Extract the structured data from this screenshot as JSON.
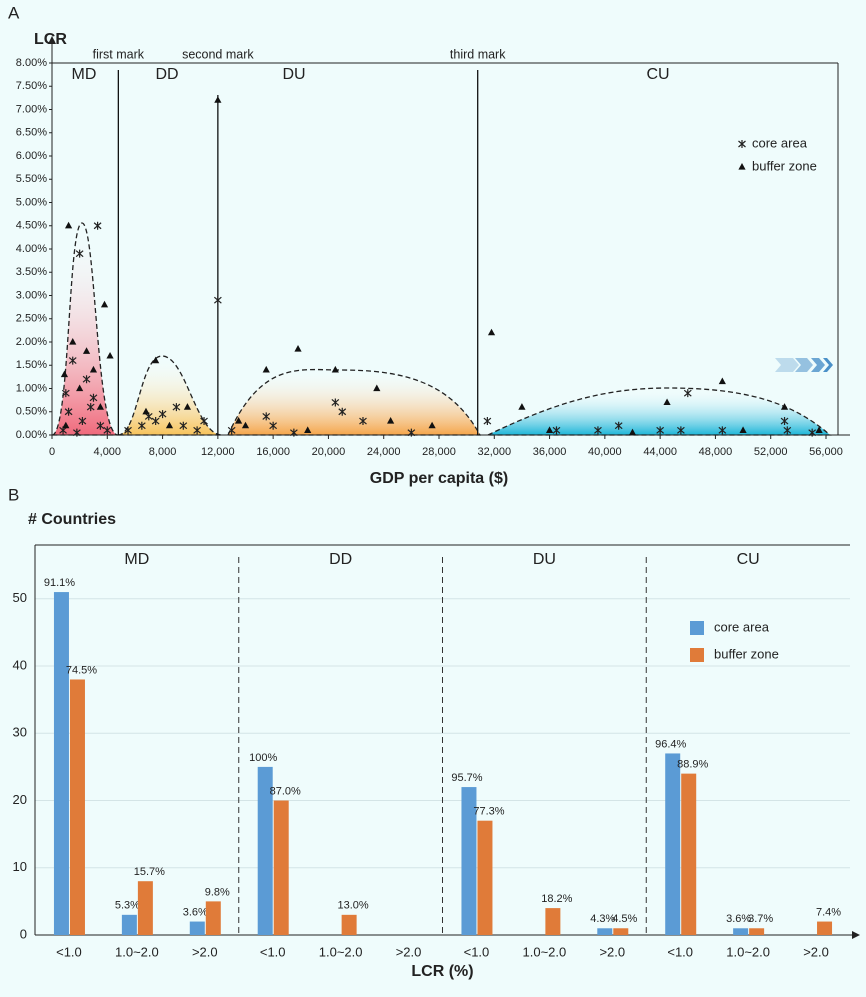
{
  "chart_data": [
    {
      "type": "scatter",
      "title": "A",
      "y_label": "LCR",
      "x_label": "GDP per capita ($)",
      "xlim": [
        0,
        56000
      ],
      "ylim": [
        0,
        8
      ],
      "xticks": [
        0,
        {
          "value": 4000,
          "label": "4,000"
        },
        {
          "value": 8000,
          "label": "8,000"
        },
        {
          "value": 12000,
          "label": "12,000"
        },
        {
          "value": 16000,
          "label": "16,000"
        },
        {
          "value": 20000,
          "label": "20,000"
        },
        {
          "value": 24000,
          "label": "24,000"
        },
        {
          "value": 28000,
          "label": "28,000"
        },
        {
          "value": 32000,
          "label": "32,000"
        },
        {
          "value": 36000,
          "label": "36,000"
        },
        {
          "value": 40000,
          "label": "40,000"
        },
        {
          "value": 44000,
          "label": "44,000"
        },
        {
          "value": 48000,
          "label": "48,000"
        },
        {
          "value": 52000,
          "label": "52,000"
        },
        {
          "value": 56000,
          "label": "56,000"
        }
      ],
      "yticks": [
        {
          "value": 0,
          "label": "0.00%"
        },
        {
          "value": 0.5,
          "label": "0.50%"
        },
        {
          "value": 1,
          "label": "1.00%"
        },
        {
          "value": 1.5,
          "label": "1.50%"
        },
        {
          "value": 2,
          "label": "2.00%"
        },
        {
          "value": 2.5,
          "label": "2.50%"
        },
        {
          "value": 3,
          "label": "3.00%"
        },
        {
          "value": 3.5,
          "label": "3.50%"
        },
        {
          "value": 4,
          "label": "4.00%"
        },
        {
          "value": 4.5,
          "label": "4.50%"
        },
        {
          "value": 5,
          "label": "5.00%"
        },
        {
          "value": 5.5,
          "label": "5.50%"
        },
        {
          "value": 6,
          "label": "6.00%"
        },
        {
          "value": 6.5,
          "label": "6.50%"
        },
        {
          "value": 7,
          "label": "7.00%"
        },
        {
          "value": 7.5,
          "label": "7.50%"
        },
        {
          "value": 8,
          "label": "8.00%"
        }
      ],
      "stage_marks": [
        {
          "label": "first mark",
          "value": 4800
        },
        {
          "label": "second mark",
          "value": 12000
        },
        {
          "label": "third mark",
          "value": 30800
        }
      ],
      "stages": [
        "MD",
        "DD",
        "DU",
        "CU"
      ],
      "legend": "upper right",
      "series": [
        {
          "name": "core area",
          "marker": "asterisk",
          "color": "#222222",
          "x": [
            1000,
            2000,
            3300,
            1500,
            2500,
            3000,
            1200,
            2200,
            3500,
            800,
            4000,
            1800,
            2800,
            5500,
            6500,
            7000,
            7500,
            8000,
            9000,
            9500,
            10500,
            11000,
            12000,
            13000,
            15500,
            16000,
            17500,
            20500,
            21000,
            22500,
            26000,
            31500,
            36500,
            39500,
            41000,
            44000,
            45500,
            46000,
            48500,
            53000,
            53200,
            55000
          ],
          "values": [
            0.9,
            3.9,
            4.5,
            1.6,
            1.2,
            0.8,
            0.5,
            0.3,
            0.2,
            0.1,
            0.1,
            0.05,
            0.6,
            0.1,
            0.2,
            0.4,
            0.3,
            0.45,
            0.6,
            0.2,
            0.1,
            0.3,
            2.9,
            0.1,
            0.4,
            0.2,
            0.05,
            0.7,
            0.5,
            0.3,
            0.05,
            0.3,
            0.1,
            0.1,
            0.2,
            0.1,
            0.1,
            0.9,
            0.1,
            0.3,
            0.1,
            0.05
          ]
        },
        {
          "name": "buffer zone",
          "marker": "triangle",
          "color": "#111111",
          "x": [
            1200,
            3800,
            2500,
            1500,
            4200,
            900,
            3000,
            2000,
            3500,
            1000,
            7500,
            6800,
            9800,
            8500,
            12000,
            13500,
            15500,
            17800,
            20500,
            23500,
            14000,
            18500,
            24500,
            27500,
            31800,
            34000,
            44500,
            48500,
            53000,
            36000,
            42000,
            50000,
            55500
          ],
          "values": [
            4.5,
            2.8,
            1.8,
            2.0,
            1.7,
            1.3,
            1.4,
            1.0,
            0.6,
            0.2,
            1.6,
            0.5,
            0.6,
            0.2,
            7.2,
            0.3,
            1.4,
            1.85,
            1.4,
            1.0,
            0.2,
            0.1,
            0.3,
            0.2,
            2.2,
            0.6,
            0.7,
            1.15,
            0.6,
            0.1,
            0.05,
            0.1,
            0.1
          ]
        }
      ]
    },
    {
      "type": "bar",
      "title": "B",
      "y_label": "# Countries",
      "x_label": "LCR (%)",
      "groups": [
        "MD",
        "DD",
        "DU",
        "CU"
      ],
      "categories": [
        "<1.0",
        "1.0~2.0",
        ">2.0",
        "<1.0",
        "1.0~2.0",
        ">2.0",
        "<1.0",
        "1.0~2.0",
        ">2.0",
        "<1.0",
        "1.0~2.0",
        ">2.0"
      ],
      "ylim": [
        0,
        58
      ],
      "yticks": [
        0,
        10,
        20,
        30,
        40,
        50
      ],
      "grid": true,
      "legend": "upper right",
      "series": [
        {
          "name": "core area",
          "color": "#5b9bd5",
          "values": [
            51,
            3,
            2,
            25,
            0,
            0,
            22,
            0,
            1,
            27,
            1,
            0
          ],
          "share_labels": [
            "91.1%",
            "5.3%",
            "3.6%",
            "100%",
            null,
            null,
            "95.7%",
            null,
            "4.3%",
            "96.4%",
            "3.6%",
            null
          ]
        },
        {
          "name": "buffer zone",
          "color": "#e07b39",
          "values": [
            38,
            8,
            5,
            20,
            3,
            0,
            17,
            4,
            1,
            24,
            1,
            2
          ],
          "share_labels": [
            "74.5%",
            "15.7%",
            "9.8%",
            "87.0%",
            "13.0%",
            null,
            "77.3%",
            "18.2%",
            "4.5%",
            "88.9%",
            "3.7%",
            "7.4%"
          ]
        }
      ]
    }
  ]
}
